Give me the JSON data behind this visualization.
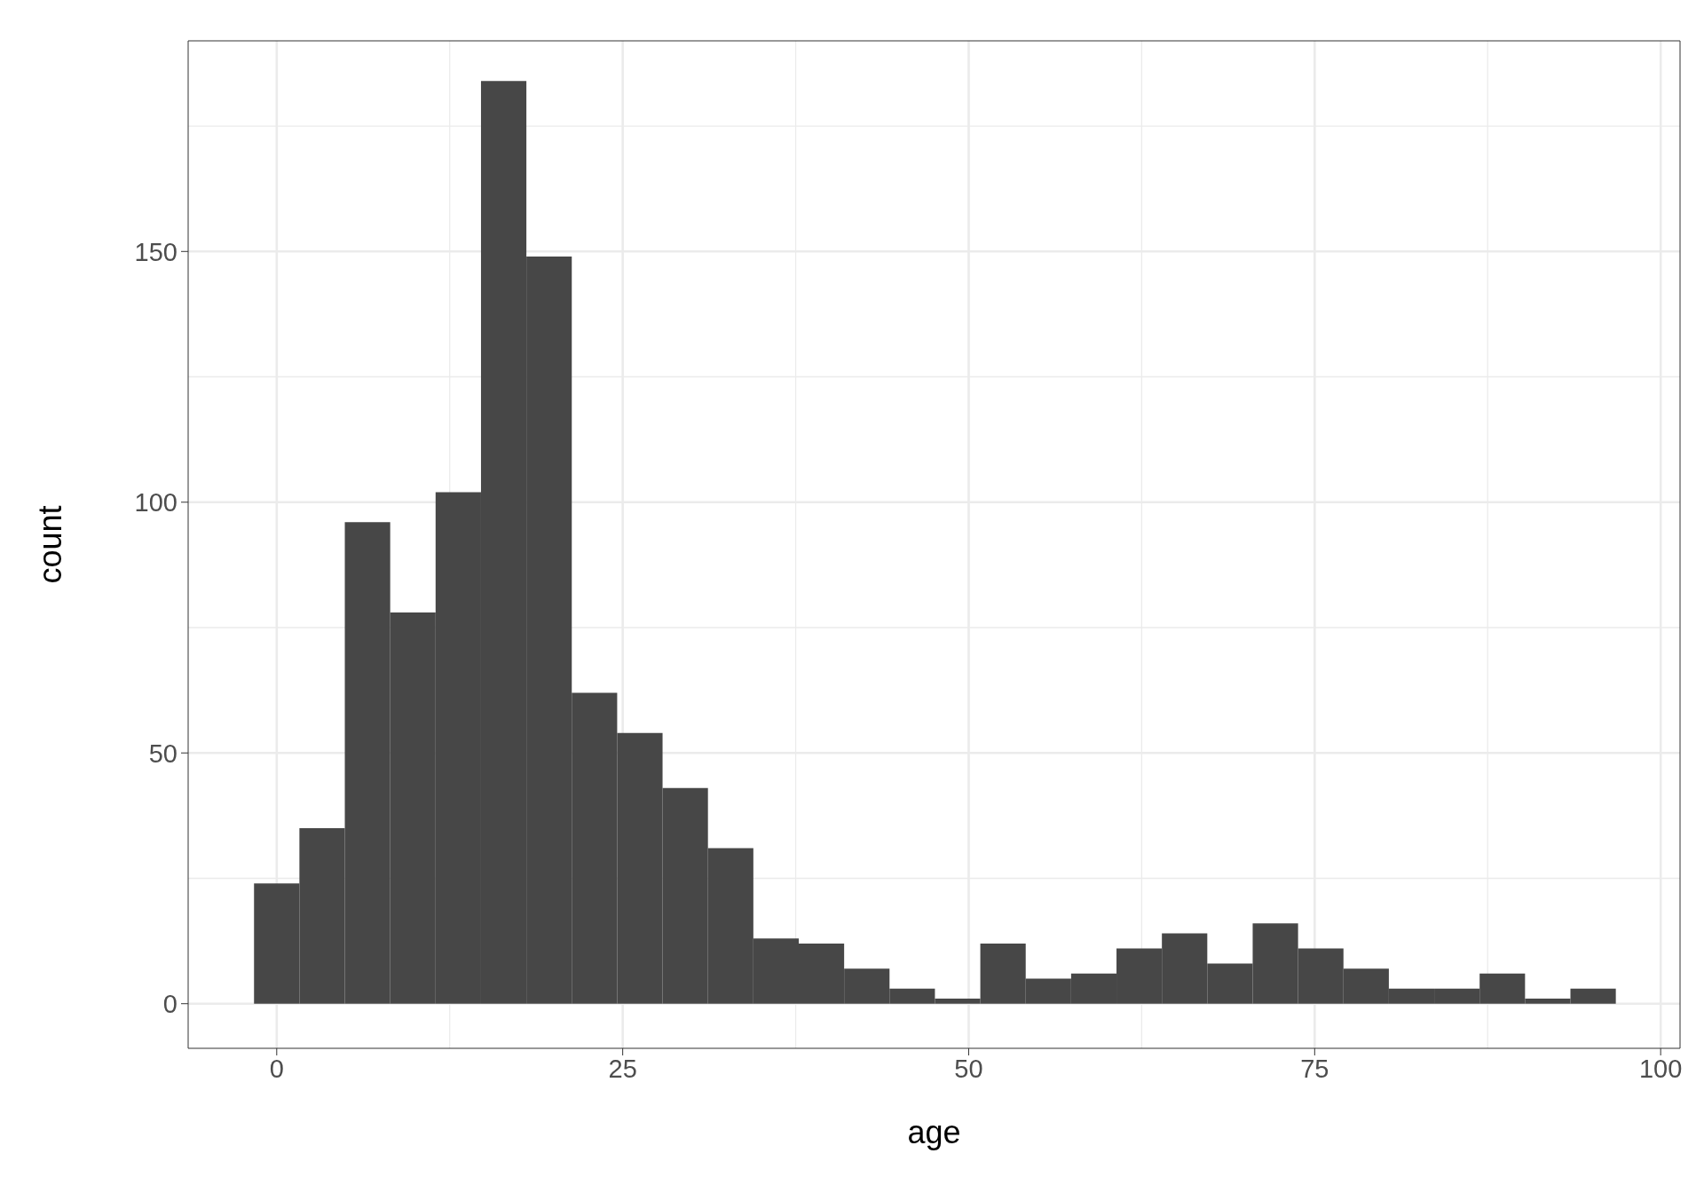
{
  "chart_data": {
    "type": "histogram",
    "xlabel": "age",
    "ylabel": "count",
    "bins": [
      -1.64,
      1.64,
      4.92,
      8.2,
      11.48,
      14.76,
      18.04,
      21.32,
      24.6,
      27.88,
      31.16,
      34.44,
      37.72,
      41.0,
      44.28,
      47.56,
      50.84,
      54.12,
      57.4,
      60.68,
      63.96,
      67.24,
      70.52,
      73.8,
      77.08,
      80.36,
      83.64,
      86.92,
      90.2,
      93.48,
      96.76
    ],
    "values": [
      24,
      35,
      96,
      78,
      102,
      184,
      149,
      62,
      54,
      43,
      31,
      13,
      12,
      7,
      3,
      1,
      12,
      5,
      6,
      11,
      14,
      8,
      16,
      11,
      7,
      3,
      3,
      6,
      1,
      3
    ],
    "color": "#474747",
    "xlim": [
      -6.4,
      101.4
    ],
    "xticks": [
      0,
      25,
      50,
      75,
      100
    ],
    "ylim": [
      -8.9,
      192
    ],
    "yticks": [
      0,
      50,
      100,
      150
    ],
    "grid": true
  }
}
